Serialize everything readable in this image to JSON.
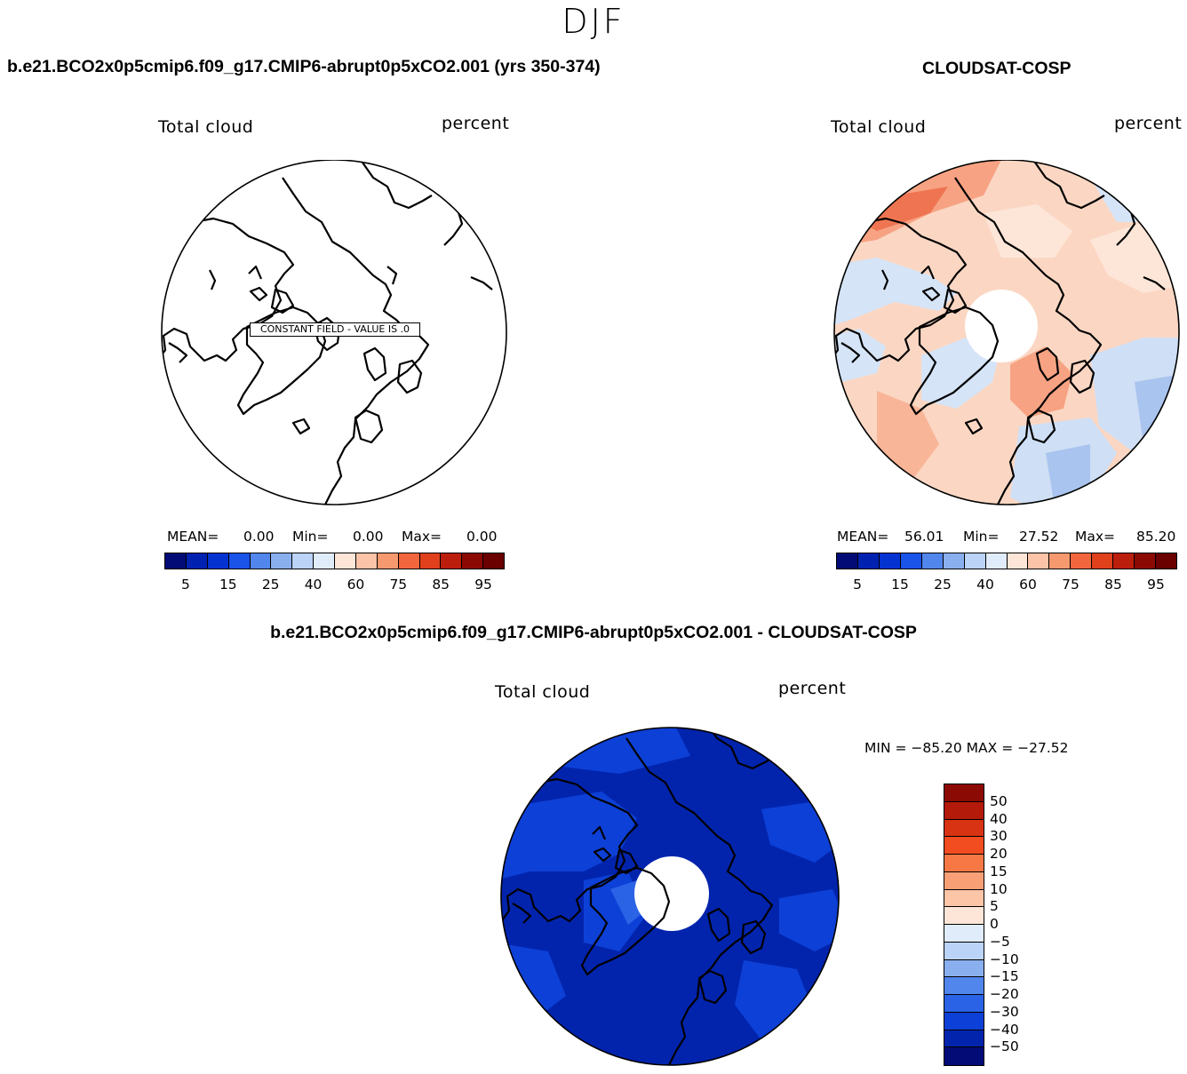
{
  "season": "DJF",
  "panel_left": {
    "case_title": "b.e21.BCO2x0p5cmip6.f09_g17.CMIP6-abrupt0p5xCO2.001 (yrs 350-374)",
    "var_label": "Total cloud",
    "units": "percent",
    "constant_field_label": "CONSTANT FIELD - VALUE IS .0",
    "stats": {
      "mean_label": "MEAN=",
      "mean": "0.00",
      "min_label": "Min=",
      "min": "0.00",
      "max_label": "Max=",
      "max": "0.00"
    }
  },
  "panel_right": {
    "case_title": "CLOUDSAT-COSP",
    "var_label": "Total cloud",
    "units": "percent",
    "stats": {
      "mean_label": "MEAN=",
      "mean": "56.01",
      "min_label": "Min=",
      "min": "27.52",
      "max_label": "Max=",
      "max": "85.20"
    }
  },
  "panel_diff": {
    "case_title": "b.e21.BCO2x0p5cmip6.f09_g17.CMIP6-abrupt0p5xCO2.001 - CLOUDSAT-COSP",
    "var_label": "Total cloud",
    "units": "percent",
    "minmax_label": "MIN = −85.20 MAX = −27.52"
  },
  "colorbar_top": {
    "ticks": [
      "5",
      "15",
      "25",
      "40",
      "60",
      "75",
      "85",
      "95"
    ],
    "colors": [
      "#020b76",
      "#0122b0",
      "#0433d1",
      "#1a53e8",
      "#5186ec",
      "#8aafef",
      "#bbd3f6",
      "#e0ecfa",
      "#fde6d8",
      "#fbc3a7",
      "#f7996f",
      "#f2663d",
      "#e0401c",
      "#bb1e0c",
      "#8c0a04",
      "#6a0000"
    ]
  },
  "colorbar_diff": {
    "ticks": [
      "50",
      "40",
      "30",
      "20",
      "15",
      "10",
      "5",
      "0",
      "−5",
      "−10",
      "−15",
      "−20",
      "−30",
      "−40",
      "−50"
    ],
    "colors": [
      "#8c0a04",
      "#b41a0a",
      "#d83313",
      "#f14d20",
      "#f77845",
      "#f99f76",
      "#fcc5a8",
      "#fde6d8",
      "#e0ecfa",
      "#bbd3f6",
      "#8aafef",
      "#5186ec",
      "#2a63e6",
      "#0d40d6",
      "#0224ad",
      "#020b76"
    ]
  }
}
